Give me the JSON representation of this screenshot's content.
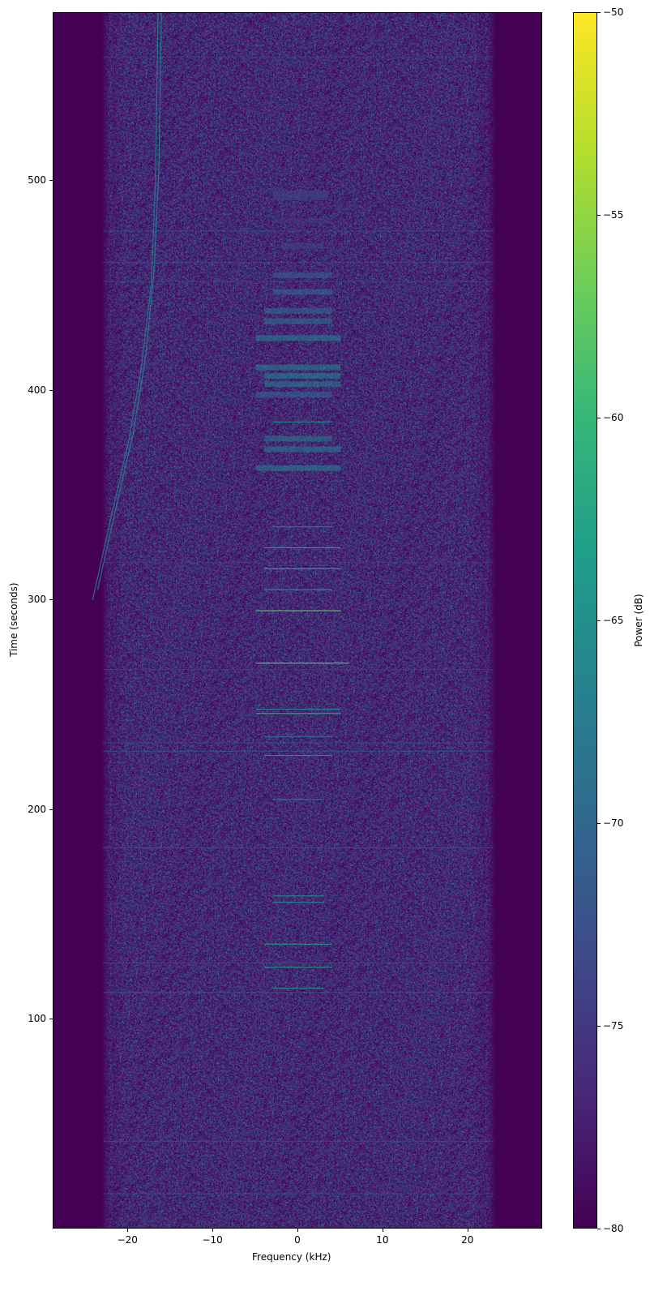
{
  "chart_data": {
    "type": "heatmap",
    "xlabel": "Frequency (kHz)",
    "ylabel": "Time (seconds)",
    "xlim": [
      -28.8,
      28.8
    ],
    "ylim": [
      0,
      580
    ],
    "xticks": [
      -20,
      -10,
      0,
      10,
      20
    ],
    "yticks": [
      100,
      200,
      300,
      400,
      500
    ],
    "colormap": "viridis",
    "colorbar": {
      "label": "Power (dB)",
      "range": [
        -80,
        -50
      ],
      "ticks": [
        -80,
        -75,
        -70,
        -65,
        -60,
        -55,
        -50
      ]
    },
    "noise_band_khz": [
      -22,
      22
    ],
    "noise_floor_db": -78,
    "broad_bursts": [
      {
        "t": 494,
        "f": [
          -3,
          3.5
        ],
        "db": -74
      },
      {
        "t": 492,
        "f": [
          -3,
          3.5
        ],
        "db": -74
      },
      {
        "t": 481,
        "f": [
          -3,
          4
        ],
        "db": -75
      },
      {
        "t": 469,
        "f": [
          -2,
          3
        ],
        "db": -74
      },
      {
        "t": 455,
        "f": [
          -3,
          4
        ],
        "db": -71
      },
      {
        "t": 447,
        "f": [
          -3,
          4
        ],
        "db": -70
      },
      {
        "t": 438,
        "f": [
          -4,
          4
        ],
        "db": -70
      },
      {
        "t": 433,
        "f": [
          -4,
          4
        ],
        "db": -69
      },
      {
        "t": 425,
        "f": [
          -5,
          5
        ],
        "db": -67
      },
      {
        "t": 411,
        "f": [
          -5,
          5
        ],
        "db": -67
      },
      {
        "t": 407,
        "f": [
          -4,
          5
        ],
        "db": -67
      },
      {
        "t": 403,
        "f": [
          -4,
          5
        ],
        "db": -68
      },
      {
        "t": 398,
        "f": [
          -5,
          4
        ],
        "db": -70
      },
      {
        "t": 377,
        "f": [
          -4,
          4
        ],
        "db": -68
      },
      {
        "t": 372,
        "f": [
          -4,
          5
        ],
        "db": -68
      },
      {
        "t": 363,
        "f": [
          -5,
          5
        ],
        "db": -67
      }
    ],
    "narrow_lines": [
      {
        "t": 385,
        "f": [
          -3,
          4
        ],
        "db": -66
      },
      {
        "t": 335,
        "f": [
          -3,
          4
        ],
        "db": -68
      },
      {
        "t": 325,
        "f": [
          -4,
          5
        ],
        "db": -63
      },
      {
        "t": 315,
        "f": [
          -4,
          5
        ],
        "db": -62
      },
      {
        "t": 305,
        "f": [
          -4,
          4
        ],
        "db": -64
      },
      {
        "t": 295,
        "f": [
          -5,
          5
        ],
        "db": -58
      },
      {
        "t": 270,
        "f": [
          -5,
          6
        ],
        "db": -58
      },
      {
        "t": 248,
        "f": [
          -5,
          5
        ],
        "db": -66
      },
      {
        "t": 246,
        "f": [
          -5,
          5
        ],
        "db": -62
      },
      {
        "t": 235,
        "f": [
          -4,
          4
        ],
        "db": -68
      },
      {
        "t": 226,
        "f": [
          -4,
          4
        ],
        "db": -66
      },
      {
        "t": 205,
        "f": [
          -3,
          3
        ],
        "db": -68
      },
      {
        "t": 159,
        "f": [
          -3,
          3
        ],
        "db": -66
      },
      {
        "t": 156,
        "f": [
          -3,
          3
        ],
        "db": -67
      },
      {
        "t": 136,
        "f": [
          -4,
          4
        ],
        "db": -64
      },
      {
        "t": 125,
        "f": [
          -4,
          4
        ],
        "db": -64
      },
      {
        "t": 115,
        "f": [
          -3,
          3
        ],
        "db": -66
      }
    ],
    "broadband_lines": [
      {
        "t": 559,
        "db": -74
      },
      {
        "t": 476,
        "db": -72
      },
      {
        "t": 461,
        "db": -72
      },
      {
        "t": 452,
        "db": -73
      },
      {
        "t": 318,
        "db": -74
      },
      {
        "t": 267,
        "db": -74
      },
      {
        "t": 232,
        "db": -72
      },
      {
        "t": 228,
        "db": -71
      },
      {
        "t": 182,
        "db": -71
      },
      {
        "t": 127,
        "db": -73
      },
      {
        "t": 113,
        "db": -71
      },
      {
        "t": 42,
        "db": -73
      },
      {
        "t": 17,
        "db": -72
      }
    ],
    "chirp_traces": [
      {
        "points": [
          [
            -24.2,
            300
          ],
          [
            -22,
            340
          ],
          [
            -20,
            375
          ],
          [
            -18.5,
            410
          ],
          [
            -17.3,
            450
          ],
          [
            -16.8,
            500
          ],
          [
            -16.5,
            580
          ]
        ],
        "db": -68
      },
      {
        "points": [
          [
            -23.6,
            305
          ],
          [
            -21.4,
            345
          ],
          [
            -19.4,
            380
          ],
          [
            -18,
            415
          ],
          [
            -17,
            455
          ],
          [
            -16.4,
            505
          ],
          [
            -16.1,
            580
          ]
        ],
        "db": -67
      }
    ]
  }
}
